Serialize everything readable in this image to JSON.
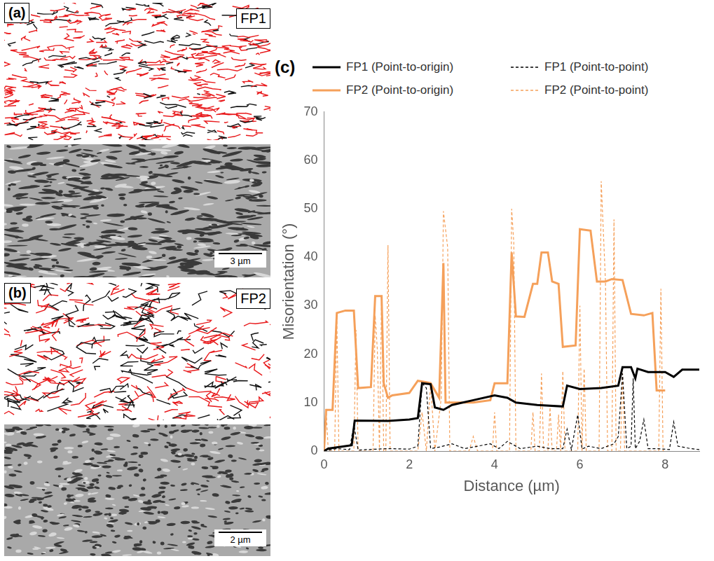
{
  "panels": [
    {
      "letter": "(a)",
      "label": "FP1",
      "scale_bar": "3 µm"
    },
    {
      "letter": "(b)",
      "label": "FP2",
      "scale_bar": "2 µm"
    }
  ],
  "chart_data": {
    "letter": "(c)",
    "type": "line",
    "xlabel": "Distance (µm)",
    "ylabel": "Misorientation (°)",
    "xlim": [
      0,
      8.8
    ],
    "xticks": [
      0,
      2,
      4,
      6,
      8
    ],
    "ylim": [
      0,
      70
    ],
    "yticks": [
      0,
      10,
      20,
      30,
      40,
      50,
      60,
      70
    ],
    "grid": false,
    "legend": "top",
    "series": [
      {
        "name": "FP1 (Point-to-origin)",
        "color": "#000000",
        "line_style": "solid",
        "x": [
          0,
          0.1,
          0.5,
          0.65,
          0.72,
          1.5,
          2.0,
          2.2,
          2.3,
          2.5,
          2.6,
          2.8,
          3.0,
          3.5,
          4.0,
          4.3,
          4.5,
          5.0,
          5.6,
          5.7,
          6.0,
          6.5,
          6.9,
          7.0,
          7.2,
          7.3,
          7.35,
          7.6,
          8.0,
          8.2,
          8.4,
          8.8
        ],
        "values": [
          0,
          0.5,
          1,
          1.2,
          6.3,
          6.2,
          6.5,
          6.8,
          14,
          13.8,
          9,
          8.5,
          9.5,
          10.5,
          11.5,
          11,
          10,
          9.5,
          9.2,
          13.5,
          12.8,
          13,
          13.5,
          17.3,
          17.3,
          15,
          17,
          16.3,
          16.3,
          15.3,
          16.8,
          16.8
        ]
      },
      {
        "name": "FP1 (Point-to-point)",
        "color": "#000000",
        "line_style": "dashed",
        "x": [
          0,
          0.3,
          0.6,
          0.7,
          0.8,
          1.0,
          1.5,
          2.0,
          2.2,
          2.3,
          2.4,
          2.5,
          2.7,
          3.0,
          3.3,
          3.6,
          3.9,
          4.1,
          4.3,
          4.6,
          5.0,
          5.3,
          5.6,
          5.7,
          5.8,
          5.95,
          6.05,
          6.2,
          6.5,
          6.8,
          6.9,
          7.0,
          7.1,
          7.2,
          7.25,
          7.3,
          7.4,
          7.5,
          7.6,
          7.8,
          8.1,
          8.2,
          8.3,
          8.6,
          8.8
        ],
        "values": [
          0,
          0.5,
          0.3,
          5.5,
          0.2,
          0.3,
          0.5,
          0.4,
          1,
          14,
          13,
          0.5,
          0.8,
          1.5,
          0.5,
          1,
          1.5,
          0.5,
          2,
          0.5,
          1,
          0.5,
          0.5,
          4.5,
          0.3,
          7.5,
          0.4,
          1,
          0.5,
          1.5,
          3,
          16,
          0.5,
          1,
          15,
          0.5,
          2,
          6.5,
          0.5,
          0.5,
          0.3,
          6,
          1,
          0.5,
          0.3
        ]
      },
      {
        "name": "FP2 (Point-to-origin)",
        "color": "#f5a05a",
        "line_style": "solid",
        "x": [
          0,
          0.05,
          0.2,
          0.3,
          0.5,
          0.7,
          0.8,
          1.1,
          1.2,
          1.35,
          1.4,
          1.5,
          1.6,
          2.0,
          2.2,
          2.4,
          2.5,
          2.7,
          2.8,
          2.85,
          3.0,
          3.5,
          3.9,
          4.0,
          4.3,
          4.4,
          4.5,
          4.7,
          4.9,
          5.0,
          5.1,
          5.25,
          5.35,
          5.5,
          5.6,
          5.9,
          6.0,
          6.25,
          6.4,
          6.6,
          6.75,
          7.0,
          7.2,
          7.5,
          7.7,
          7.8,
          8.0
        ],
        "values": [
          0,
          8.5,
          8.5,
          28.5,
          29,
          29,
          13,
          13.2,
          32,
          32,
          14,
          11,
          11.5,
          12,
          14.5,
          14.2,
          14,
          11,
          38.8,
          10,
          10,
          10,
          10.5,
          14,
          14,
          41,
          27.8,
          27.7,
          34.5,
          34.5,
          41,
          41,
          35,
          34.5,
          21.5,
          21.8,
          45.8,
          45.5,
          35,
          35,
          35.5,
          35.3,
          28.3,
          28,
          28.5,
          12.5,
          12.5
        ]
      },
      {
        "name": "FP2 (Point-to-point)",
        "color": "#f5a05a",
        "line_style": "dashed",
        "x": [
          0,
          0.05,
          0.1,
          0.25,
          0.3,
          0.35,
          0.7,
          0.75,
          0.8,
          1.15,
          1.2,
          1.25,
          1.3,
          1.35,
          1.4,
          1.45,
          1.5,
          1.55,
          2.2,
          2.3,
          2.4,
          2.5,
          2.6,
          2.75,
          2.8,
          2.9,
          2.95,
          3.4,
          3.5,
          3.6,
          3.95,
          4.0,
          4.05,
          4.35,
          4.4,
          4.45,
          4.5,
          4.85,
          4.9,
          4.95,
          5.05,
          5.1,
          5.15,
          5.25,
          5.3,
          5.35,
          5.45,
          5.5,
          5.55,
          5.6,
          5.65,
          5.95,
          6.0,
          6.05,
          6.1,
          6.15,
          6.45,
          6.5,
          6.6,
          6.65,
          6.75,
          6.8,
          6.85,
          6.95,
          7.0,
          7.05,
          7.85,
          7.9,
          7.95,
          8.0
        ],
        "values": [
          0,
          8.5,
          0,
          0,
          28,
          0,
          0,
          25,
          0,
          0,
          28,
          21,
          0,
          32,
          0,
          0,
          42.5,
          0,
          0,
          8,
          0,
          14,
          0,
          11,
          49.5,
          42,
          0,
          0,
          3,
          0,
          0,
          8,
          0,
          0,
          50,
          43,
          0,
          0,
          8,
          0,
          0,
          16,
          0,
          0,
          9,
          0,
          0,
          7.5,
          0,
          16.5,
          0,
          0,
          30,
          0,
          17,
          0,
          0,
          55.7,
          35,
          0,
          0,
          47.8,
          0,
          0,
          16,
          0,
          0,
          33.5,
          0,
          0
        ]
      }
    ]
  }
}
